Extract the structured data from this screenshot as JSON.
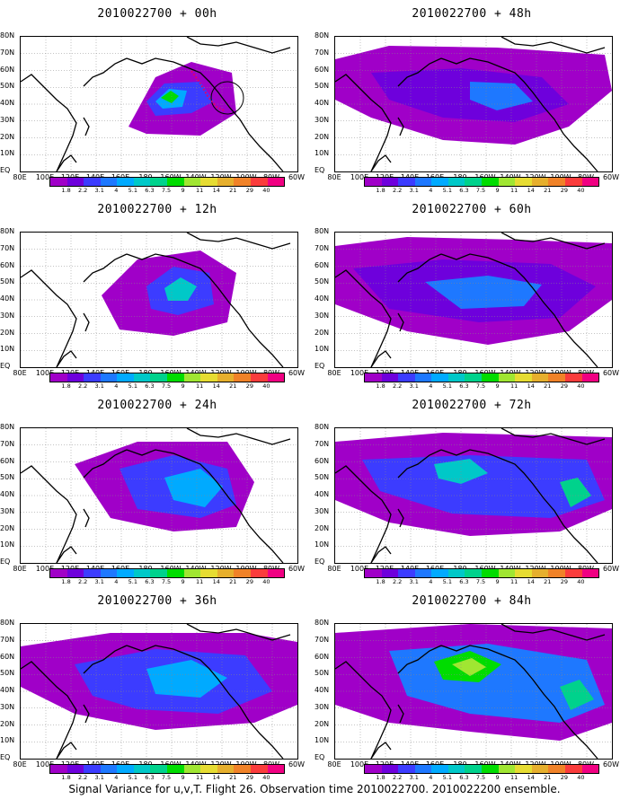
{
  "panels": [
    {
      "id": "p00",
      "title": "2010022700 + 00h"
    },
    {
      "id": "p48",
      "title": "2010022700 + 48h"
    },
    {
      "id": "p12",
      "title": "2010022700 + 12h"
    },
    {
      "id": "p60",
      "title": "2010022700 + 60h"
    },
    {
      "id": "p24",
      "title": "2010022700 + 24h"
    },
    {
      "id": "p72",
      "title": "2010022700 + 72h"
    },
    {
      "id": "p36",
      "title": "2010022700 + 36h"
    },
    {
      "id": "p84",
      "title": "2010022700 + 84h"
    }
  ],
  "lat_labels": [
    "80N",
    "70N",
    "60N",
    "50N",
    "40N",
    "30N",
    "20N",
    "10N",
    "EQ"
  ],
  "lon_labels": [
    "80E",
    "100E",
    "120E",
    "140E",
    "160E",
    "180",
    "160W",
    "140W",
    "120W",
    "100W",
    "80W",
    "60W"
  ],
  "colorbar": {
    "labels": [
      "1.8",
      "2.2",
      "3.1",
      "4",
      "5.1",
      "6.3",
      "7.5",
      "9",
      "11",
      "14",
      "21",
      "29",
      "40"
    ],
    "colors": [
      "#a000c8",
      "#6e00dc",
      "#3c3cff",
      "#1e78ff",
      "#00aaff",
      "#00c8c8",
      "#00d28c",
      "#00dc00",
      "#a0e632",
      "#e6dc32",
      "#e6af2d",
      "#f08228",
      "#fa3c3c",
      "#f00082"
    ]
  },
  "footer": "Signal Variance for u,v,T. Flight 26. Observation time 2010022700. 2010022200 ensemble."
}
